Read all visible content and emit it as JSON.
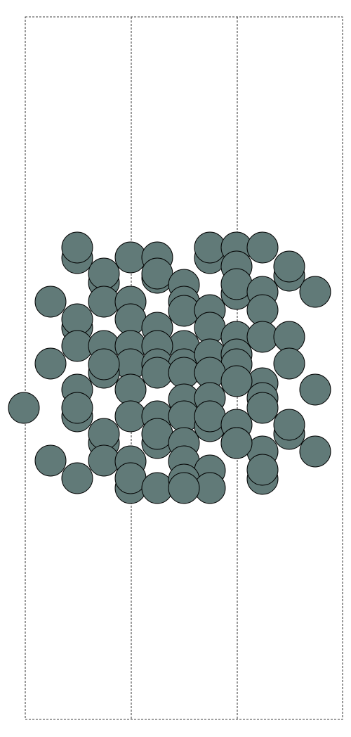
{
  "figure": {
    "kind": "atomic-structure",
    "atom_fill": "#617a78",
    "atom_stroke": "#000000",
    "cell_line_color": "#000000",
    "cell_line_style": "dashed",
    "background": "#ffffff"
  }
}
